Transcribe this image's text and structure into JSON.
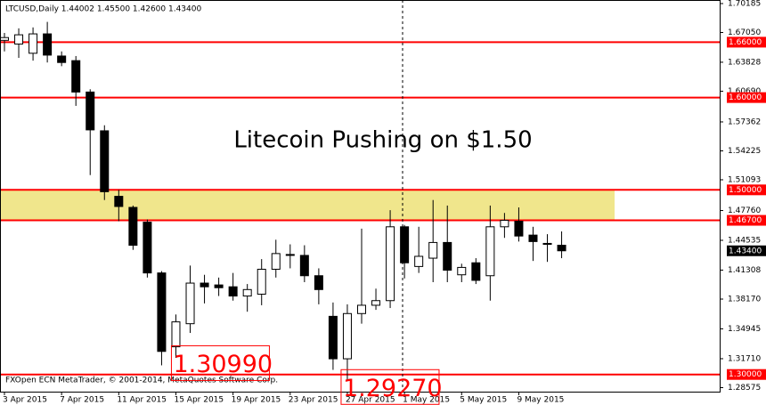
{
  "chart_data": {
    "type": "candlestick",
    "title": "LTCUSD,Daily  1.44002 1.45500 1.42600 1.43400",
    "annotation": "Litecoin Pushing on $1.50",
    "footer": "FXOpen ECN MetaTrader, © 2001-2014, MetaQuotes Software Corp.",
    "categories": [
      "3 Apr 2015",
      null,
      null,
      null,
      "7 Apr 2015",
      null,
      null,
      null,
      "11 Apr 2015",
      null,
      null,
      null,
      "15 Apr 2015",
      null,
      null,
      null,
      "19 Apr 2015",
      null,
      null,
      null,
      "23 Apr 2015",
      null,
      null,
      null,
      "27 Apr 2015",
      null,
      null,
      null,
      "1 May 2015",
      null,
      null,
      null,
      "5 May 2015",
      null,
      null,
      null,
      "9 May 2015",
      null,
      null,
      null
    ],
    "open": [
      1.662,
      1.658,
      1.648,
      1.669,
      1.645,
      1.64,
      1.606,
      1.564,
      1.493,
      1.481,
      1.465,
      1.41,
      1.33,
      1.355,
      1.399,
      1.397,
      1.395,
      1.385,
      1.387,
      1.414,
      1.43,
      1.429,
      1.407,
      1.363,
      1.317,
      1.366,
      1.375,
      1.38,
      1.46,
      1.417,
      1.426,
      1.443,
      1.408,
      1.421,
      1.407,
      1.46,
      1.466,
      1.451,
      1.442,
      1.44002
    ],
    "high": [
      1.67,
      1.675,
      1.676,
      1.682,
      1.65,
      1.645,
      1.609,
      1.57,
      1.5,
      1.483,
      1.468,
      1.412,
      1.365,
      1.418,
      1.408,
      1.405,
      1.41,
      1.398,
      1.425,
      1.446,
      1.441,
      1.44,
      1.415,
      1.378,
      1.376,
      1.458,
      1.393,
      1.478,
      1.462,
      1.46,
      1.489,
      1.483,
      1.42,
      1.426,
      1.483,
      1.475,
      1.481,
      1.46,
      1.452,
      1.455
    ],
    "low": [
      1.65,
      1.643,
      1.64,
      1.638,
      1.634,
      1.591,
      1.516,
      1.489,
      1.466,
      1.435,
      1.405,
      1.3099,
      1.318,
      1.345,
      1.377,
      1.385,
      1.38,
      1.368,
      1.375,
      1.405,
      1.415,
      1.4,
      1.376,
      1.305,
      1.2927,
      1.355,
      1.37,
      1.372,
      1.404,
      1.41,
      1.4,
      1.4,
      1.4,
      1.398,
      1.38,
      1.448,
      1.444,
      1.423,
      1.422,
      1.426
    ],
    "close": [
      1.665,
      1.668,
      1.669,
      1.646,
      1.638,
      1.606,
      1.565,
      1.498,
      1.482,
      1.44,
      1.41,
      1.325,
      1.357,
      1.399,
      1.395,
      1.394,
      1.385,
      1.392,
      1.414,
      1.431,
      1.429,
      1.407,
      1.392,
      1.317,
      1.366,
      1.375,
      1.38,
      1.46,
      1.421,
      1.428,
      1.443,
      1.413,
      1.416,
      1.402,
      1.46,
      1.467,
      1.45,
      1.444,
      1.441,
      1.434
    ],
    "up_color": "#ffffff",
    "down_color": "#000000",
    "ylim": [
      1.2814,
      1.7057
    ],
    "yticks": [
      {
        "value": 1.70185,
        "label": "1.70185"
      },
      {
        "value": 1.6705,
        "label": "1.67050"
      },
      {
        "value": 1.63828,
        "label": "1.63828"
      },
      {
        "value": 1.6069,
        "label": "1.60690"
      },
      {
        "value": 1.57362,
        "label": "1.57362"
      },
      {
        "value": 1.54225,
        "label": "1.54225"
      },
      {
        "value": 1.51093,
        "label": "1.51093"
      },
      {
        "value": 1.4776,
        "label": "1.47760"
      },
      {
        "value": 1.44535,
        "label": "1.44535"
      },
      {
        "value": 1.41308,
        "label": "1.41308"
      },
      {
        "value": 1.3817,
        "label": "1.38170"
      },
      {
        "value": 1.34945,
        "label": "1.34945"
      },
      {
        "value": 1.3171,
        "label": "1.31710"
      },
      {
        "value": 1.28575,
        "label": "1.28575"
      }
    ],
    "levels": [
      {
        "value": 1.66,
        "label": "1.66000"
      },
      {
        "value": 1.6,
        "label": "1.60000"
      },
      {
        "value": 1.5,
        "label": "1.50000"
      },
      {
        "value": 1.467,
        "label": "1.46700"
      },
      {
        "value": 1.3,
        "label": "1.30000"
      }
    ],
    "level_color": "#ff0000",
    "zone": {
      "from": 1.467,
      "to": 1.5,
      "color": "#f0e68c"
    },
    "low_labels": [
      {
        "index": 11,
        "value": 1.3099,
        "label": "1.30990"
      },
      {
        "index": 24,
        "value": 1.2927,
        "label": "1.29270"
      }
    ],
    "last_price": {
      "value": 1.434,
      "label": "1.43400"
    }
  }
}
